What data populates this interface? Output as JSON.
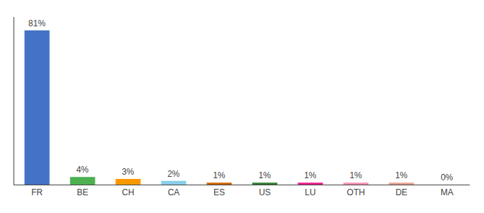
{
  "chart_data": {
    "type": "bar",
    "categories": [
      "FR",
      "BE",
      "CH",
      "CA",
      "ES",
      "US",
      "LU",
      "OTH",
      "DE",
      "MA"
    ],
    "values": [
      81,
      4,
      3,
      2,
      1,
      1,
      1,
      1,
      1,
      0
    ],
    "value_labels": [
      "81%",
      "4%",
      "3%",
      "2%",
      "1%",
      "1%",
      "1%",
      "1%",
      "1%",
      "0%"
    ],
    "colors": [
      "#4472c4",
      "#4caf50",
      "#ff9800",
      "#87ceeb",
      "#cc6600",
      "#2e7d32",
      "#e91e8c",
      "#f48fb1",
      "#e8a090",
      "#d3d3d3"
    ],
    "ylim": [
      0,
      88
    ],
    "data_labels": true,
    "tick_labels": "x",
    "grid": false
  }
}
